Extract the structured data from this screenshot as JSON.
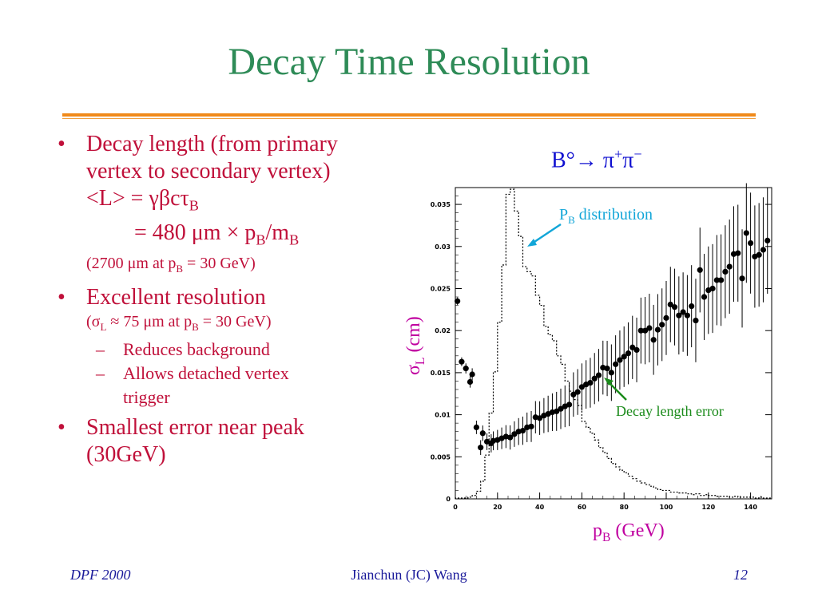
{
  "slide": {
    "title": "Decay Time Resolution",
    "footer_left": "DPF 2000",
    "footer_center": "Jianchun (JC) Wang",
    "footer_right": "12"
  },
  "bullets": {
    "b1_l1": "Decay length (from primary",
    "b1_l2": "vertex to secondary vertex)",
    "b1_l3": "<L> = γβcτ",
    "b1_l3_sub": "B",
    "b1_l4a": "= 480 μm × p",
    "b1_l4_sub1": "B",
    "b1_l4b": "/m",
    "b1_l4_sub2": "B",
    "b1_l5a": "(2700 μm  at p",
    "b1_l5_sub": "B",
    "b1_l5b": " = 30 GeV)",
    "b2_l1": "Excellent resolution",
    "b2_l2a": "(σ",
    "b2_l2_sub1": "L",
    "b2_l2b": " ≈ 75 μm at p",
    "b2_l2_sub2": "B",
    "b2_l2c": " = 30 GeV)",
    "sub1": "Reduces background",
    "sub2_l1": "Allows detached vertex",
    "sub2_l2": "trigger",
    "b3_l1": "Smallest error near peak",
    "b3_l2": "(30GeV)"
  },
  "chart_data": {
    "type": "scatter",
    "title_main": "B°→ π",
    "title_sup1": "+",
    "title_mid": "π",
    "title_sup2": "−",
    "ylabel_main": "σ",
    "ylabel_sub": "L",
    "ylabel_rest": " (cm)",
    "xlabel_main": "p",
    "xlabel_sub": "B",
    "xlabel_rest": " (GeV)",
    "xlim": [
      0,
      150
    ],
    "ylim": [
      0,
      0.037
    ],
    "xticks": [
      "0",
      "20",
      "40",
      "60",
      "80",
      "100",
      "120",
      "140"
    ],
    "yticks": [
      "0",
      "0.005",
      "0.01",
      "0.015",
      "0.02",
      "0.025",
      "0.03",
      "0.035"
    ],
    "annotations": {
      "pb_main": "P",
      "pb_sub": "B",
      "pb_rest": " distribution",
      "decay": "Decay length error"
    },
    "points": [
      [
        1,
        0.0235
      ],
      [
        3,
        0.0163
      ],
      [
        5,
        0.0155
      ],
      [
        7,
        0.0139
      ],
      [
        8,
        0.0148
      ],
      [
        10,
        0.0085
      ],
      [
        12,
        0.0061
      ],
      [
        13,
        0.0078
      ],
      [
        15,
        0.0068
      ],
      [
        17,
        0.0066
      ],
      [
        18,
        0.0069
      ],
      [
        20,
        0.007
      ],
      [
        22,
        0.0072
      ],
      [
        24,
        0.0074
      ],
      [
        26,
        0.0073
      ],
      [
        28,
        0.0077
      ],
      [
        30,
        0.008
      ],
      [
        32,
        0.0081
      ],
      [
        34,
        0.0085
      ],
      [
        36,
        0.0086
      ],
      [
        38,
        0.0097
      ],
      [
        40,
        0.0096
      ],
      [
        42,
        0.0099
      ],
      [
        44,
        0.0101
      ],
      [
        46,
        0.0103
      ],
      [
        48,
        0.0104
      ],
      [
        50,
        0.0107
      ],
      [
        52,
        0.011
      ],
      [
        54,
        0.0112
      ],
      [
        56,
        0.0124
      ],
      [
        58,
        0.0127
      ],
      [
        60,
        0.0133
      ],
      [
        62,
        0.0136
      ],
      [
        64,
        0.0138
      ],
      [
        66,
        0.0143
      ],
      [
        68,
        0.0147
      ],
      [
        70,
        0.0156
      ],
      [
        72,
        0.0155
      ],
      [
        74,
        0.015
      ],
      [
        76,
        0.016
      ],
      [
        78,
        0.0165
      ],
      [
        80,
        0.0169
      ],
      [
        82,
        0.0173
      ],
      [
        84,
        0.018
      ],
      [
        86,
        0.0177
      ],
      [
        88,
        0.02
      ],
      [
        90,
        0.02
      ],
      [
        92,
        0.0203
      ],
      [
        94,
        0.0189
      ],
      [
        96,
        0.0201
      ],
      [
        98,
        0.0207
      ],
      [
        100,
        0.0215
      ],
      [
        102,
        0.0231
      ],
      [
        104,
        0.0228
      ],
      [
        106,
        0.0218
      ],
      [
        108,
        0.0222
      ],
      [
        110,
        0.0218
      ],
      [
        112,
        0.0229
      ],
      [
        114,
        0.0212
      ],
      [
        116,
        0.0272
      ],
      [
        118,
        0.024
      ],
      [
        120,
        0.0248
      ],
      [
        122,
        0.025
      ],
      [
        124,
        0.026
      ],
      [
        126,
        0.026
      ],
      [
        128,
        0.027
      ],
      [
        130,
        0.0276
      ],
      [
        132,
        0.0291
      ],
      [
        134,
        0.0292
      ],
      [
        136,
        0.0262
      ],
      [
        138,
        0.0316
      ],
      [
        140,
        0.0304
      ],
      [
        142,
        0.0288
      ],
      [
        144,
        0.029
      ],
      [
        146,
        0.0296
      ],
      [
        148,
        0.0307
      ]
    ],
    "hist_pb": [
      [
        0,
        0.0001
      ],
      [
        3,
        0.0001
      ],
      [
        6,
        0.0002
      ],
      [
        8,
        0.0004
      ],
      [
        10,
        0.0009
      ],
      [
        12,
        0.0021
      ],
      [
        14,
        0.0052
      ],
      [
        16,
        0.0102
      ],
      [
        18,
        0.0151
      ],
      [
        20,
        0.021
      ],
      [
        22,
        0.0278
      ],
      [
        24,
        0.0362
      ],
      [
        26,
        0.0368
      ],
      [
        28,
        0.0342
      ],
      [
        30,
        0.0312
      ],
      [
        32,
        0.0276
      ],
      [
        34,
        0.027
      ],
      [
        36,
        0.0265
      ],
      [
        38,
        0.0242
      ],
      [
        40,
        0.023
      ],
      [
        42,
        0.0205
      ],
      [
        44,
        0.0195
      ],
      [
        46,
        0.0188
      ],
      [
        48,
        0.017
      ],
      [
        50,
        0.016
      ],
      [
        52,
        0.014
      ],
      [
        54,
        0.0128
      ],
      [
        56,
        0.0118
      ],
      [
        58,
        0.0111
      ],
      [
        60,
        0.0092
      ],
      [
        62,
        0.0085
      ],
      [
        64,
        0.0078
      ],
      [
        66,
        0.007
      ],
      [
        68,
        0.0061
      ],
      [
        70,
        0.0055
      ],
      [
        72,
        0.0048
      ],
      [
        74,
        0.0042
      ],
      [
        76,
        0.0038
      ],
      [
        78,
        0.0034
      ],
      [
        80,
        0.0031
      ],
      [
        82,
        0.0027
      ],
      [
        84,
        0.0024
      ],
      [
        86,
        0.0021
      ],
      [
        88,
        0.0019
      ],
      [
        90,
        0.0017
      ],
      [
        92,
        0.0015
      ],
      [
        94,
        0.0013
      ],
      [
        96,
        0.0011
      ],
      [
        98,
        0.001
      ],
      [
        100,
        0.001
      ],
      [
        102,
        0.0008
      ],
      [
        104,
        0.0008
      ],
      [
        106,
        0.0007
      ],
      [
        108,
        0.0007
      ],
      [
        110,
        0.0006
      ],
      [
        112,
        0.0005
      ],
      [
        114,
        0.0006
      ],
      [
        116,
        0.0004
      ],
      [
        118,
        0.0005
      ],
      [
        120,
        0.0004
      ],
      [
        122,
        0.0004
      ],
      [
        124,
        0.0003
      ],
      [
        126,
        0.0003
      ],
      [
        128,
        0.0003
      ],
      [
        130,
        0.0002
      ],
      [
        132,
        0.0003
      ],
      [
        134,
        0.0002
      ],
      [
        136,
        0.0002
      ],
      [
        138,
        0.0002
      ],
      [
        140,
        0.0002
      ],
      [
        142,
        0.0001
      ],
      [
        144,
        0.0002
      ],
      [
        146,
        0.0001
      ],
      [
        148,
        0.0001
      ]
    ]
  }
}
